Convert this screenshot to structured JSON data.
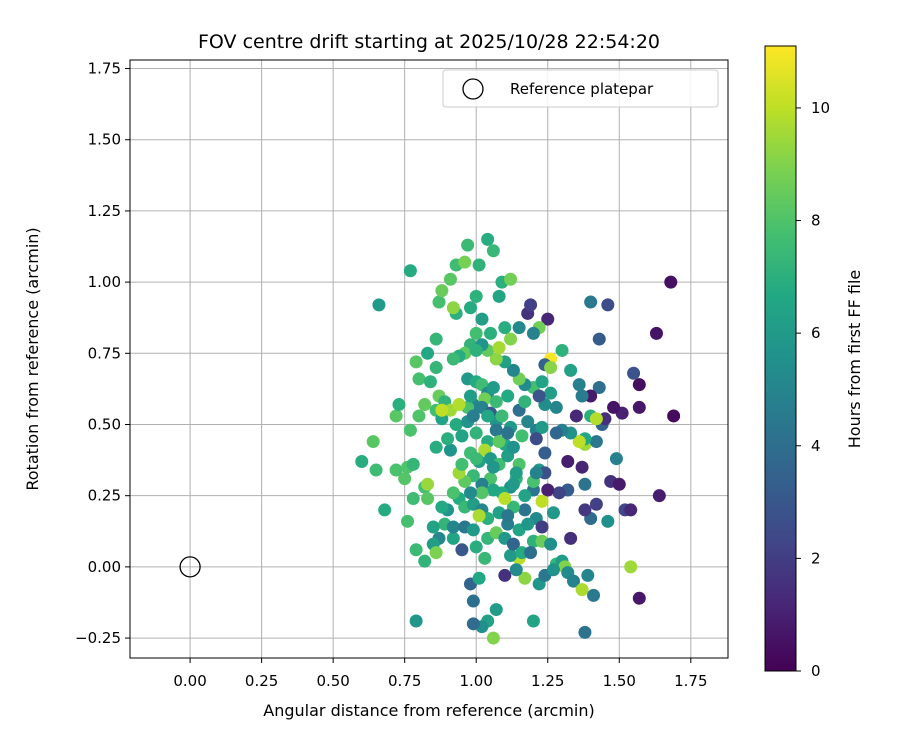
{
  "chart_data": {
    "type": "scatter",
    "title": "FOV centre drift starting at 2025/10/28 22:54:20",
    "xlabel": "Angular distance from reference (arcmin)",
    "ylabel": "Rotation from reference (arcmin)",
    "xlim": [
      -0.21,
      1.88
    ],
    "ylim": [
      -0.32,
      1.78
    ],
    "x_ticks": [
      "0.00",
      "0.25",
      "0.50",
      "0.75",
      "1.00",
      "1.25",
      "1.50",
      "1.75"
    ],
    "y_ticks": [
      "−0.25",
      "0.00",
      "0.25",
      "0.50",
      "0.75",
      "1.00",
      "1.25",
      "1.50",
      "1.75"
    ],
    "grid": true,
    "colorbar": {
      "label": "Hours from first FF file",
      "range": [
        0,
        11.1
      ],
      "ticks": [
        "0",
        "2",
        "4",
        "6",
        "8",
        "10"
      ],
      "colormap": "viridis"
    },
    "legend": {
      "position": "top-right",
      "entries": [
        {
          "label": "Reference platepar",
          "marker": "open-circle"
        }
      ]
    },
    "reference": {
      "x": 0.0,
      "y": 0.0
    },
    "points": [
      [
        1.68,
        1.0,
        0.5
      ],
      [
        1.69,
        0.53,
        0.3
      ],
      [
        1.63,
        0.82,
        0.6
      ],
      [
        1.57,
        0.64,
        0.4
      ],
      [
        1.57,
        0.56,
        0.7
      ],
      [
        1.55,
        0.68,
        2.8
      ],
      [
        1.51,
        0.54,
        1.0
      ],
      [
        1.48,
        0.56,
        0.6
      ],
      [
        1.47,
        0.3,
        1.6
      ],
      [
        1.5,
        0.29,
        0.8
      ],
      [
        1.52,
        0.2,
        2.3
      ],
      [
        1.54,
        0.2,
        1.2
      ],
      [
        1.64,
        0.25,
        0.9
      ],
      [
        1.57,
        -0.11,
        0.7
      ],
      [
        1.46,
        0.92,
        2.6
      ],
      [
        1.43,
        0.8,
        3.2
      ],
      [
        1.4,
        0.93,
        4.5
      ],
      [
        1.43,
        0.63,
        4.0
      ],
      [
        1.44,
        0.5,
        3.5
      ],
      [
        1.45,
        0.52,
        1.5
      ],
      [
        1.4,
        0.6,
        0.8
      ],
      [
        1.37,
        0.6,
        4.6
      ],
      [
        1.35,
        0.53,
        1.3
      ],
      [
        1.36,
        0.64,
        4.8
      ],
      [
        1.4,
        0.53,
        7.0
      ],
      [
        1.42,
        0.52,
        9.8
      ],
      [
        1.38,
        0.43,
        9.5
      ],
      [
        1.37,
        0.35,
        1.1
      ],
      [
        1.38,
        0.29,
        4.2
      ],
      [
        1.42,
        0.22,
        2.1
      ],
      [
        1.46,
        0.16,
        5.5
      ],
      [
        1.4,
        0.17,
        3.8
      ],
      [
        1.38,
        0.2,
        1.8
      ],
      [
        1.32,
        0.37,
        0.9
      ],
      [
        1.32,
        0.27,
        3.2
      ],
      [
        1.33,
        0.1,
        1.5
      ],
      [
        1.29,
        0.26,
        2.2
      ],
      [
        1.25,
        0.27,
        1.0
      ],
      [
        1.25,
        0.87,
        1.2
      ],
      [
        1.26,
        0.73,
        11.0
      ],
      [
        1.24,
        0.71,
        3.4
      ],
      [
        1.26,
        0.7,
        9.1
      ],
      [
        1.28,
        0.56,
        5.0
      ],
      [
        1.24,
        0.57,
        5.4
      ],
      [
        1.22,
        0.84,
        8.7
      ],
      [
        1.18,
        0.89,
        1.6
      ],
      [
        1.19,
        0.92,
        2.1
      ],
      [
        1.21,
        0.48,
        4.8
      ],
      [
        1.21,
        0.45,
        2.5
      ],
      [
        1.24,
        0.4,
        3.3
      ],
      [
        1.22,
        0.34,
        5.9
      ],
      [
        1.24,
        0.33,
        2.7
      ],
      [
        1.2,
        0.27,
        4.3
      ],
      [
        1.21,
        0.17,
        5.2
      ],
      [
        1.23,
        0.23,
        10.0
      ],
      [
        1.27,
        0.19,
        5.9
      ],
      [
        1.23,
        0.14,
        2.0
      ],
      [
        1.2,
        0.09,
        7.1
      ],
      [
        1.22,
        -0.06,
        5.8
      ],
      [
        1.24,
        -0.03,
        4.4
      ],
      [
        1.2,
        -0.19,
        6.4
      ],
      [
        1.17,
        -0.04,
        9.2
      ],
      [
        1.15,
        0.03,
        9.9
      ],
      [
        1.14,
        -0.01,
        5.3
      ],
      [
        1.12,
        0.04,
        6.0
      ],
      [
        1.1,
        -0.03,
        1.6
      ],
      [
        1.07,
        -0.15,
        6.1
      ],
      [
        1.04,
        -0.19,
        6.3
      ],
      [
        1.02,
        -0.21,
        5.5
      ],
      [
        0.99,
        -0.2,
        3.9
      ],
      [
        1.06,
        -0.25,
        9.0
      ],
      [
        0.99,
        -0.12,
        4.1
      ],
      [
        0.98,
        -0.06,
        3.6
      ],
      [
        1.01,
        -0.04,
        6.6
      ],
      [
        1.03,
        0.03,
        7.4
      ],
      [
        1.0,
        0.07,
        6.9
      ],
      [
        0.95,
        0.06,
        3.0
      ],
      [
        0.92,
        0.1,
        6.5
      ],
      [
        0.87,
        0.1,
        5.1
      ],
      [
        0.85,
        0.08,
        6.2
      ],
      [
        0.82,
        0.02,
        7.2
      ],
      [
        0.79,
        0.06,
        7.5
      ],
      [
        0.86,
        0.05,
        8.9
      ],
      [
        0.76,
        0.16,
        7.8
      ],
      [
        0.78,
        0.24,
        7.6
      ],
      [
        0.75,
        0.31,
        8.1
      ],
      [
        0.72,
        0.34,
        7.9
      ],
      [
        0.76,
        0.35,
        8.0
      ],
      [
        0.78,
        0.36,
        7.3
      ],
      [
        0.82,
        0.28,
        7.7
      ],
      [
        0.83,
        0.29,
        9.4
      ],
      [
        0.83,
        0.24,
        8.2
      ],
      [
        0.77,
        0.48,
        7.9
      ],
      [
        0.72,
        0.53,
        8.2
      ],
      [
        0.73,
        0.57,
        7.0
      ],
      [
        0.8,
        0.53,
        8.0
      ],
      [
        0.82,
        0.57,
        8.4
      ],
      [
        0.8,
        0.66,
        7.8
      ],
      [
        0.84,
        0.65,
        7.1
      ],
      [
        0.83,
        0.75,
        6.6
      ],
      [
        0.79,
        0.72,
        8.2
      ],
      [
        0.86,
        0.7,
        7.3
      ],
      [
        0.87,
        0.6,
        8.5
      ],
      [
        0.86,
        0.55,
        7.7
      ],
      [
        0.88,
        0.52,
        6.4
      ],
      [
        0.89,
        0.58,
        7.2
      ],
      [
        0.91,
        0.55,
        9.5
      ],
      [
        0.93,
        0.5,
        6.8
      ],
      [
        0.95,
        0.46,
        8.0
      ],
      [
        0.91,
        0.41,
        5.7
      ],
      [
        0.9,
        0.45,
        7.0
      ],
      [
        0.86,
        0.42,
        6.9
      ],
      [
        0.88,
        0.55,
        10.0
      ],
      [
        0.86,
        0.8,
        7.3
      ],
      [
        0.87,
        0.93,
        7.8
      ],
      [
        0.88,
        0.97,
        8.5
      ],
      [
        0.91,
        1.01,
        8.2
      ],
      [
        0.93,
        1.06,
        7.6
      ],
      [
        0.96,
        1.07,
        8.8
      ],
      [
        0.97,
        1.13,
        7.5
      ],
      [
        1.01,
        1.06,
        7.1
      ],
      [
        1.04,
        1.15,
        6.9
      ],
      [
        1.06,
        1.11,
        7.4
      ],
      [
        1.09,
        1.0,
        7.0
      ],
      [
        1.12,
        1.01,
        8.7
      ],
      [
        1.08,
        0.95,
        6.5
      ],
      [
        1.0,
        0.95,
        7.1
      ],
      [
        0.98,
        0.91,
        6.8
      ],
      [
        0.93,
        0.89,
        7.0
      ],
      [
        0.92,
        0.91,
        9.2
      ],
      [
        1.02,
        0.87,
        6.2
      ],
      [
        1.0,
        0.82,
        7.7
      ],
      [
        0.98,
        0.78,
        7.2
      ],
      [
        0.96,
        0.75,
        8.3
      ],
      [
        0.94,
        0.74,
        6.9
      ],
      [
        0.92,
        0.73,
        7.5
      ],
      [
        0.97,
        0.66,
        5.9
      ],
      [
        1.0,
        0.65,
        6.7
      ],
      [
        1.02,
        0.64,
        7.6
      ],
      [
        1.04,
        0.61,
        5.4
      ],
      [
        1.06,
        0.63,
        6.1
      ],
      [
        0.99,
        0.57,
        5.1
      ],
      [
        1.03,
        0.59,
        8.7
      ],
      [
        0.97,
        0.56,
        7.9
      ],
      [
        0.94,
        0.57,
        9.8
      ],
      [
        0.95,
        0.46,
        6.4
      ],
      [
        0.97,
        0.51,
        5.6
      ],
      [
        0.99,
        0.53,
        4.7
      ],
      [
        1.02,
        0.56,
        4.9
      ],
      [
        1.05,
        0.54,
        3.3
      ],
      [
        1.07,
        0.51,
        5.7
      ],
      [
        1.09,
        0.53,
        7.5
      ],
      [
        1.12,
        0.49,
        6.0
      ],
      [
        1.1,
        0.43,
        6.5
      ],
      [
        1.07,
        0.48,
        4.5
      ],
      [
        1.04,
        0.44,
        6.8
      ],
      [
        1.0,
        0.47,
        7.2
      ],
      [
        0.98,
        0.4,
        7.6
      ],
      [
        1.01,
        0.37,
        6.3
      ],
      [
        1.03,
        0.41,
        9.7
      ],
      [
        1.05,
        0.38,
        5.9
      ],
      [
        1.08,
        0.36,
        7.7
      ],
      [
        1.11,
        0.39,
        6.2
      ],
      [
        1.13,
        0.42,
        5.6
      ],
      [
        1.15,
        0.36,
        8.0
      ],
      [
        1.14,
        0.31,
        7.2
      ],
      [
        1.12,
        0.28,
        5.4
      ],
      [
        1.09,
        0.26,
        6.7
      ],
      [
        1.05,
        0.31,
        7.9
      ],
      [
        1.02,
        0.29,
        4.8
      ],
      [
        0.99,
        0.32,
        7.4
      ],
      [
        0.96,
        0.3,
        8.3
      ],
      [
        0.94,
        0.33,
        9.5
      ],
      [
        0.95,
        0.36,
        7.7
      ],
      [
        0.94,
        0.24,
        6.8
      ],
      [
        0.96,
        0.21,
        7.4
      ],
      [
        0.99,
        0.22,
        6.2
      ],
      [
        1.02,
        0.2,
        5.1
      ],
      [
        1.04,
        0.17,
        7.0
      ],
      [
        1.08,
        0.19,
        6.3
      ],
      [
        1.11,
        0.15,
        4.7
      ],
      [
        1.15,
        0.13,
        6.5
      ],
      [
        1.18,
        0.15,
        5.8
      ],
      [
        1.17,
        0.2,
        4.2
      ],
      [
        1.13,
        0.21,
        7.4
      ],
      [
        1.1,
        0.24,
        9.9
      ],
      [
        1.06,
        0.27,
        6.6
      ],
      [
        1.02,
        0.26,
        8.1
      ],
      [
        0.98,
        0.26,
        5.3
      ],
      [
        0.92,
        0.26,
        7.9
      ],
      [
        0.9,
        0.2,
        5.7
      ],
      [
        0.89,
        0.15,
        7.2
      ],
      [
        0.92,
        0.14,
        5.0
      ],
      [
        0.96,
        0.14,
        4.4
      ],
      [
        0.99,
        0.13,
        6.0
      ],
      [
        1.01,
        0.18,
        9.7
      ],
      [
        1.04,
        0.1,
        7.3
      ],
      [
        1.07,
        0.12,
        8.5
      ],
      [
        1.1,
        0.1,
        5.9
      ],
      [
        1.13,
        0.08,
        3.6
      ],
      [
        1.16,
        0.05,
        6.8
      ],
      [
        1.19,
        0.05,
        4.1
      ],
      [
        1.23,
        0.09,
        8.6
      ],
      [
        1.26,
        0.08,
        5.5
      ],
      [
        1.28,
        0.01,
        7.3
      ],
      [
        1.3,
        0.02,
        6.1
      ],
      [
        1.31,
        0.0,
        9.0
      ],
      [
        1.27,
        -0.01,
        5.6
      ],
      [
        1.32,
        -0.02,
        5.3
      ],
      [
        1.34,
        -0.05,
        4.9
      ],
      [
        1.39,
        -0.03,
        5.0
      ],
      [
        1.41,
        -0.1,
        4.5
      ],
      [
        1.37,
        -0.08,
        9.7
      ],
      [
        1.38,
        -0.23,
        4.2
      ],
      [
        1.54,
        0.0,
        9.5
      ],
      [
        1.49,
        0.38,
        4.8
      ],
      [
        1.42,
        0.44,
        4.4
      ],
      [
        1.38,
        0.45,
        6.6
      ],
      [
        1.36,
        0.44,
        10.0
      ],
      [
        1.33,
        0.47,
        5.6
      ],
      [
        1.3,
        0.48,
        4.8
      ],
      [
        1.28,
        0.47,
        3.7
      ],
      [
        1.23,
        0.49,
        6.0
      ],
      [
        1.18,
        0.51,
        5.1
      ],
      [
        1.15,
        0.55,
        4.0
      ],
      [
        1.17,
        0.58,
        7.2
      ],
      [
        1.2,
        0.63,
        7.8
      ],
      [
        1.23,
        0.65,
        6.4
      ],
      [
        1.26,
        0.61,
        6.2
      ],
      [
        1.22,
        0.6,
        2.9
      ],
      [
        1.17,
        0.64,
        5.3
      ],
      [
        1.15,
        0.66,
        8.7
      ],
      [
        1.13,
        0.69,
        5.0
      ],
      [
        1.1,
        0.72,
        6.3
      ],
      [
        1.07,
        0.73,
        9.2
      ],
      [
        1.04,
        0.76,
        8.4
      ],
      [
        1.02,
        0.78,
        5.7
      ],
      [
        1.05,
        0.82,
        7.0
      ],
      [
        1.08,
        0.77,
        9.6
      ],
      [
        1.1,
        0.84,
        6.9
      ],
      [
        1.12,
        0.8,
        9.0
      ],
      [
        1.15,
        0.84,
        5.2
      ],
      [
        1.2,
        0.82,
        4.9
      ],
      [
        1.3,
        0.76,
        7.1
      ],
      [
        1.33,
        0.69,
        6.3
      ],
      [
        1.11,
        0.6,
        6.7
      ],
      [
        1.07,
        0.58,
        7.5
      ],
      [
        1.13,
        0.29,
        6.0
      ],
      [
        1.17,
        0.25,
        6.4
      ],
      [
        1.2,
        0.3,
        7.9
      ],
      [
        1.11,
        0.18,
        4.4
      ],
      [
        1.14,
        0.33,
        6.2
      ],
      [
        1.06,
        0.35,
        5.8
      ],
      [
        1.08,
        0.44,
        8.3
      ],
      [
        1.11,
        0.47,
        4.2
      ],
      [
        1.16,
        0.46,
        7.7
      ],
      [
        1.0,
        0.76,
        7.1
      ],
      [
        0.98,
        0.6,
        6.2
      ],
      [
        0.68,
        0.2,
        6.8
      ],
      [
        0.65,
        0.34,
        7.6
      ],
      [
        0.64,
        0.44,
        8.2
      ],
      [
        0.6,
        0.37,
        6.9
      ],
      [
        0.66,
        0.92,
        6.0
      ],
      [
        0.77,
        1.04,
        6.8
      ],
      [
        0.79,
        -0.19,
        5.8
      ],
      [
        0.85,
        0.14,
        6.4
      ],
      [
        0.88,
        0.21,
        6.7
      ],
      [
        1.21,
        0.33,
        4.9
      ],
      [
        1.0,
        0.38,
        7.5
      ],
      [
        1.04,
        0.53,
        6.6
      ]
    ]
  }
}
